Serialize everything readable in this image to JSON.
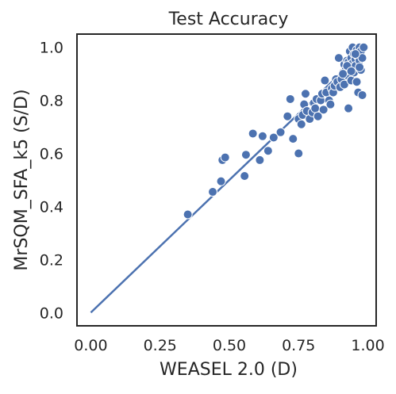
{
  "chart_data": {
    "type": "scatter",
    "title": "Test Accuracy",
    "xlabel": "WEASEL 2.0 (D)",
    "ylabel": "MrSQM_SFA_k5 (S/D)",
    "xlim": [
      -0.05,
      1.03
    ],
    "ylim": [
      -0.05,
      1.05
    ],
    "xticks": [
      "0.00",
      "0.25",
      "0.50",
      "0.75",
      "1.00"
    ],
    "xtick_values": [
      0.0,
      0.25,
      0.5,
      0.75,
      1.0
    ],
    "yticks": [
      "0.0",
      "0.2",
      "0.4",
      "0.6",
      "0.8",
      "1.0"
    ],
    "ytick_values": [
      0.0,
      0.2,
      0.4,
      0.6,
      0.8,
      1.0
    ],
    "grid": false,
    "colors": {
      "point": "#4c72b0",
      "line": "#4c72b0",
      "frame": "#262626"
    },
    "diagonal": {
      "x": [
        0.0,
        1.0
      ],
      "y": [
        0.0,
        1.0
      ]
    },
    "points": [
      [
        0.35,
        0.37
      ],
      [
        0.44,
        0.455
      ],
      [
        0.47,
        0.495
      ],
      [
        0.475,
        0.575
      ],
      [
        0.485,
        0.585
      ],
      [
        0.555,
        0.515
      ],
      [
        0.56,
        0.595
      ],
      [
        0.585,
        0.675
      ],
      [
        0.61,
        0.575
      ],
      [
        0.62,
        0.665
      ],
      [
        0.64,
        0.61
      ],
      [
        0.66,
        0.66
      ],
      [
        0.685,
        0.68
      ],
      [
        0.71,
        0.74
      ],
      [
        0.72,
        0.805
      ],
      [
        0.73,
        0.655
      ],
      [
        0.75,
        0.6
      ],
      [
        0.75,
        0.73
      ],
      [
        0.76,
        0.71
      ],
      [
        0.765,
        0.745
      ],
      [
        0.77,
        0.785
      ],
      [
        0.775,
        0.825
      ],
      [
        0.78,
        0.76
      ],
      [
        0.79,
        0.73
      ],
      [
        0.8,
        0.755
      ],
      [
        0.805,
        0.79
      ],
      [
        0.81,
        0.77
      ],
      [
        0.815,
        0.805
      ],
      [
        0.82,
        0.74
      ],
      [
        0.83,
        0.8
      ],
      [
        0.835,
        0.825
      ],
      [
        0.84,
        0.765
      ],
      [
        0.845,
        0.875
      ],
      [
        0.85,
        0.83
      ],
      [
        0.86,
        0.8
      ],
      [
        0.865,
        0.785
      ],
      [
        0.87,
        0.845
      ],
      [
        0.875,
        0.83
      ],
      [
        0.88,
        0.855
      ],
      [
        0.885,
        0.88
      ],
      [
        0.89,
        0.87
      ],
      [
        0.895,
        0.96
      ],
      [
        0.9,
        0.85
      ],
      [
        0.905,
        0.88
      ],
      [
        0.91,
        0.905
      ],
      [
        0.915,
        0.86
      ],
      [
        0.915,
        0.935
      ],
      [
        0.92,
        0.915
      ],
      [
        0.925,
        0.95
      ],
      [
        0.925,
        0.895
      ],
      [
        0.93,
        0.77
      ],
      [
        0.93,
        0.945
      ],
      [
        0.935,
        0.985
      ],
      [
        0.935,
        0.92
      ],
      [
        0.94,
        0.96
      ],
      [
        0.94,
        0.875
      ],
      [
        0.945,
        0.94
      ],
      [
        0.945,
        1.0
      ],
      [
        0.95,
        0.975
      ],
      [
        0.95,
        0.905
      ],
      [
        0.955,
        0.955
      ],
      [
        0.955,
        0.93
      ],
      [
        0.96,
        0.99
      ],
      [
        0.96,
        0.87
      ],
      [
        0.965,
        0.965
      ],
      [
        0.965,
        0.83
      ],
      [
        0.97,
        1.0
      ],
      [
        0.97,
        0.95
      ],
      [
        0.975,
        0.985
      ],
      [
        0.975,
        0.915
      ],
      [
        0.98,
        0.82
      ],
      [
        0.98,
        0.96
      ],
      [
        0.985,
        1.0
      ],
      [
        0.91,
        0.9
      ],
      [
        0.925,
        0.93
      ],
      [
        0.94,
        0.91
      ],
      [
        0.955,
        0.975
      ],
      [
        0.97,
        0.925
      ]
    ]
  }
}
